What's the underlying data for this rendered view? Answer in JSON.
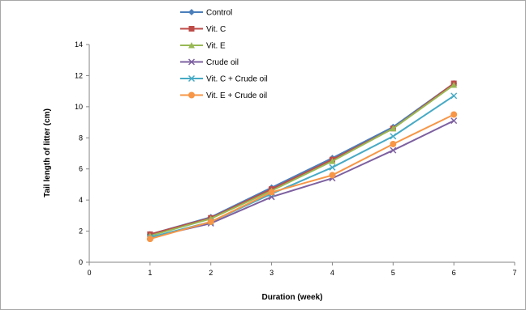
{
  "chart_data": {
    "type": "line",
    "title": "",
    "xlabel": "Duration (week)",
    "ylabel": "Tail length of litter (cm)",
    "xlim": [
      0,
      7
    ],
    "ylim": [
      0,
      14
    ],
    "xticks": [
      0,
      1,
      2,
      3,
      4,
      5,
      6,
      7
    ],
    "yticks": [
      0,
      2,
      4,
      6,
      8,
      10,
      12,
      14
    ],
    "grid": false,
    "legend_position": "top",
    "x": [
      1,
      2,
      3,
      4,
      5,
      6
    ],
    "series": [
      {
        "name": "Control",
        "color": "#4a7ebb",
        "marker": "diamond",
        "values": [
          1.8,
          2.9,
          4.8,
          6.7,
          8.7,
          11.5
        ]
      },
      {
        "name": "Vit. C",
        "color": "#be4b48",
        "marker": "square",
        "values": [
          1.8,
          2.85,
          4.7,
          6.6,
          8.6,
          11.5
        ]
      },
      {
        "name": "Vit. E",
        "color": "#98b954",
        "marker": "triangle",
        "values": [
          1.7,
          2.8,
          4.6,
          6.5,
          8.6,
          11.4
        ]
      },
      {
        "name": "Crude oil",
        "color": "#7d60a0",
        "marker": "x",
        "values": [
          1.6,
          2.5,
          4.2,
          5.4,
          7.2,
          9.1
        ]
      },
      {
        "name": "Vit. C + Crude oil",
        "color": "#46aac5",
        "marker": "x",
        "values": [
          1.6,
          2.6,
          4.4,
          6.1,
          8.1,
          10.7
        ]
      },
      {
        "name": "Vit. E + Crude oil",
        "color": "#f79646",
        "marker": "circle",
        "values": [
          1.5,
          2.6,
          4.5,
          5.6,
          7.6,
          9.5
        ]
      }
    ]
  }
}
